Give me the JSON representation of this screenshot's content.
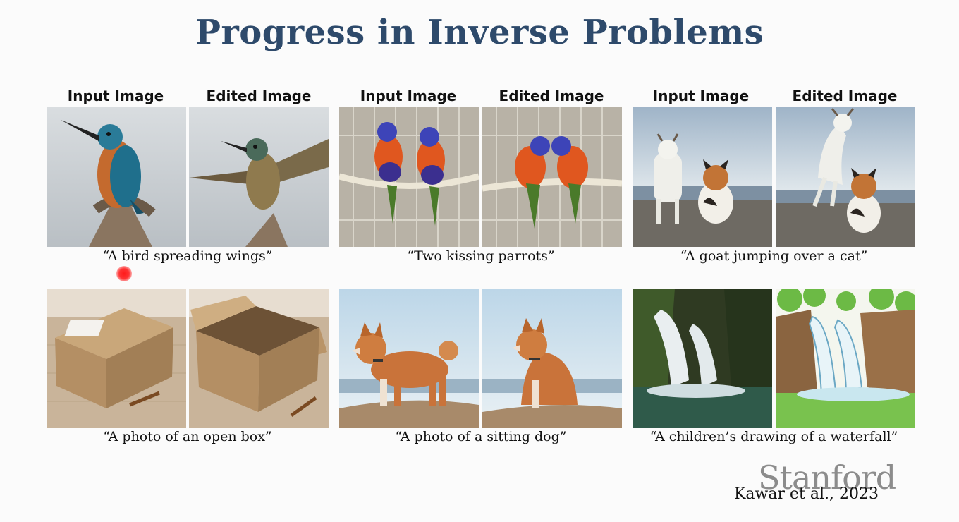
{
  "slide": {
    "title": "Progress in Inverse Problems",
    "citation": "Kawar et al., 2023",
    "logo_text": "Stanford"
  },
  "headers": {
    "input": "Input Image",
    "edited": "Edited Image"
  },
  "examples": [
    {
      "caption": "“A bird spreading wings”",
      "input_icon": "kingfisher-perched",
      "edited_icon": "kingfisher-spreading-wings"
    },
    {
      "caption": "“Two kissing parrots”",
      "input_icon": "two-parrots-on-rope",
      "edited_icon": "two-parrots-kissing"
    },
    {
      "caption": "“A goat jumping over a cat”",
      "input_icon": "goat-and-cat",
      "edited_icon": "goat-jumping-over-cat"
    },
    {
      "caption": "“A photo of an open box”",
      "input_icon": "closed-cardboard-box",
      "edited_icon": "open-cardboard-box"
    },
    {
      "caption": "“A photo of a sitting dog”",
      "input_icon": "standing-shiba-dog",
      "edited_icon": "sitting-shiba-dog"
    },
    {
      "caption": "“A children’s drawing of a waterfall”",
      "input_icon": "waterfall-photo",
      "edited_icon": "waterfall-drawing"
    }
  ],
  "colors": {
    "title": "#2e4a6b",
    "logo": "#8c8c8c",
    "cursor": "#ff2a2a"
  }
}
